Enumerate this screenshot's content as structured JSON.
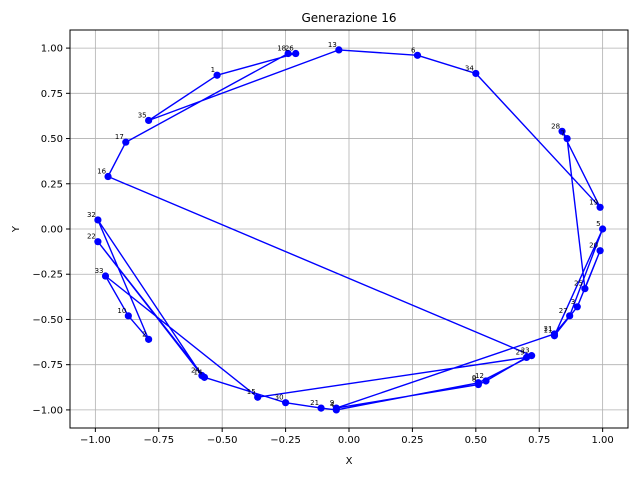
{
  "chart_data": {
    "type": "line",
    "title": "Generazione 16",
    "xlabel": "X",
    "ylabel": "Y",
    "xlim": [
      -1.1,
      1.1
    ],
    "ylim": [
      -1.1,
      1.1
    ],
    "grid": true,
    "xticks": [
      -1.0,
      -0.75,
      -0.5,
      -0.25,
      0.0,
      0.25,
      0.5,
      0.75,
      1.0
    ],
    "xtick_labels": [
      "−1.00",
      "−0.75",
      "−0.50",
      "−0.25",
      "0.00",
      "0.25",
      "0.50",
      "0.75",
      "1.00"
    ],
    "yticks": [
      -1.0,
      -0.75,
      -0.5,
      -0.25,
      0.0,
      0.25,
      0.5,
      0.75,
      1.0
    ],
    "ytick_labels": [
      "−1.00",
      "−0.75",
      "−0.50",
      "−0.25",
      "0.00",
      "0.25",
      "0.50",
      "0.75",
      "1.00"
    ],
    "line_color": "#0000ff",
    "marker_color": "#0000ff",
    "cities": [
      {
        "id": "13",
        "x": -0.04,
        "y": 0.99
      },
      {
        "id": "6",
        "x": 0.27,
        "y": 0.96
      },
      {
        "id": "34",
        "x": 0.5,
        "y": 0.86
      },
      {
        "id": "19",
        "x": 0.99,
        "y": 0.12
      },
      {
        "id": "28",
        "x": 0.84,
        "y": 0.54
      },
      {
        "id": "7",
        "x": 0.86,
        "y": 0.5
      },
      {
        "id": "25",
        "x": 0.93,
        "y": -0.33
      },
      {
        "id": "20",
        "x": 0.99,
        "y": -0.12
      },
      {
        "id": "3",
        "x": 0.9,
        "y": -0.43
      },
      {
        "id": "11",
        "x": 0.81,
        "y": -0.59
      },
      {
        "id": "5",
        "x": 1.0,
        "y": 0.0
      },
      {
        "id": "27",
        "x": 0.87,
        "y": -0.48
      },
      {
        "id": "31",
        "x": 0.81,
        "y": -0.58
      },
      {
        "id": "9",
        "x": -0.05,
        "y": -0.99
      },
      {
        "id": "8",
        "x": 0.51,
        "y": -0.86
      },
      {
        "id": "12",
        "x": 0.54,
        "y": -0.84
      },
      {
        "id": "29",
        "x": 0.7,
        "y": -0.71
      },
      {
        "id": "15",
        "x": -0.36,
        "y": -0.93
      },
      {
        "id": "33",
        "x": -0.96,
        "y": -0.26
      },
      {
        "id": "10",
        "x": -0.87,
        "y": -0.48
      },
      {
        "id": "2",
        "x": -0.79,
        "y": -0.61
      },
      {
        "id": "32",
        "x": -0.99,
        "y": 0.05
      },
      {
        "id": "24",
        "x": -0.58,
        "y": -0.81
      },
      {
        "id": "22",
        "x": -0.99,
        "y": -0.07
      },
      {
        "id": "14",
        "x": -0.57,
        "y": -0.82
      },
      {
        "id": "30",
        "x": -0.25,
        "y": -0.96
      },
      {
        "id": "21",
        "x": -0.11,
        "y": -0.99
      },
      {
        "id": "4",
        "x": -0.05,
        "y": -1.0
      },
      {
        "id": "0",
        "x": 0.51,
        "y": -0.85
      },
      {
        "id": "23",
        "x": 0.72,
        "y": -0.7
      },
      {
        "id": "16",
        "x": -0.95,
        "y": 0.29
      },
      {
        "id": "17",
        "x": -0.88,
        "y": 0.48
      },
      {
        "id": "18",
        "x": -0.24,
        "y": 0.97
      },
      {
        "id": "26",
        "x": -0.21,
        "y": 0.97
      },
      {
        "id": "1",
        "x": -0.52,
        "y": 0.85
      },
      {
        "id": "35",
        "x": -0.79,
        "y": 0.6
      }
    ],
    "route": [
      "13",
      "6",
      "34",
      "19",
      "28",
      "7",
      "25",
      "20",
      "3",
      "11",
      "5",
      "27",
      "31",
      "9",
      "8",
      "12",
      "29",
      "15",
      "33",
      "10",
      "2",
      "32",
      "24",
      "22",
      "14",
      "30",
      "21",
      "4",
      "0",
      "23",
      "16",
      "17",
      "18",
      "26",
      "1",
      "35",
      "13"
    ]
  }
}
